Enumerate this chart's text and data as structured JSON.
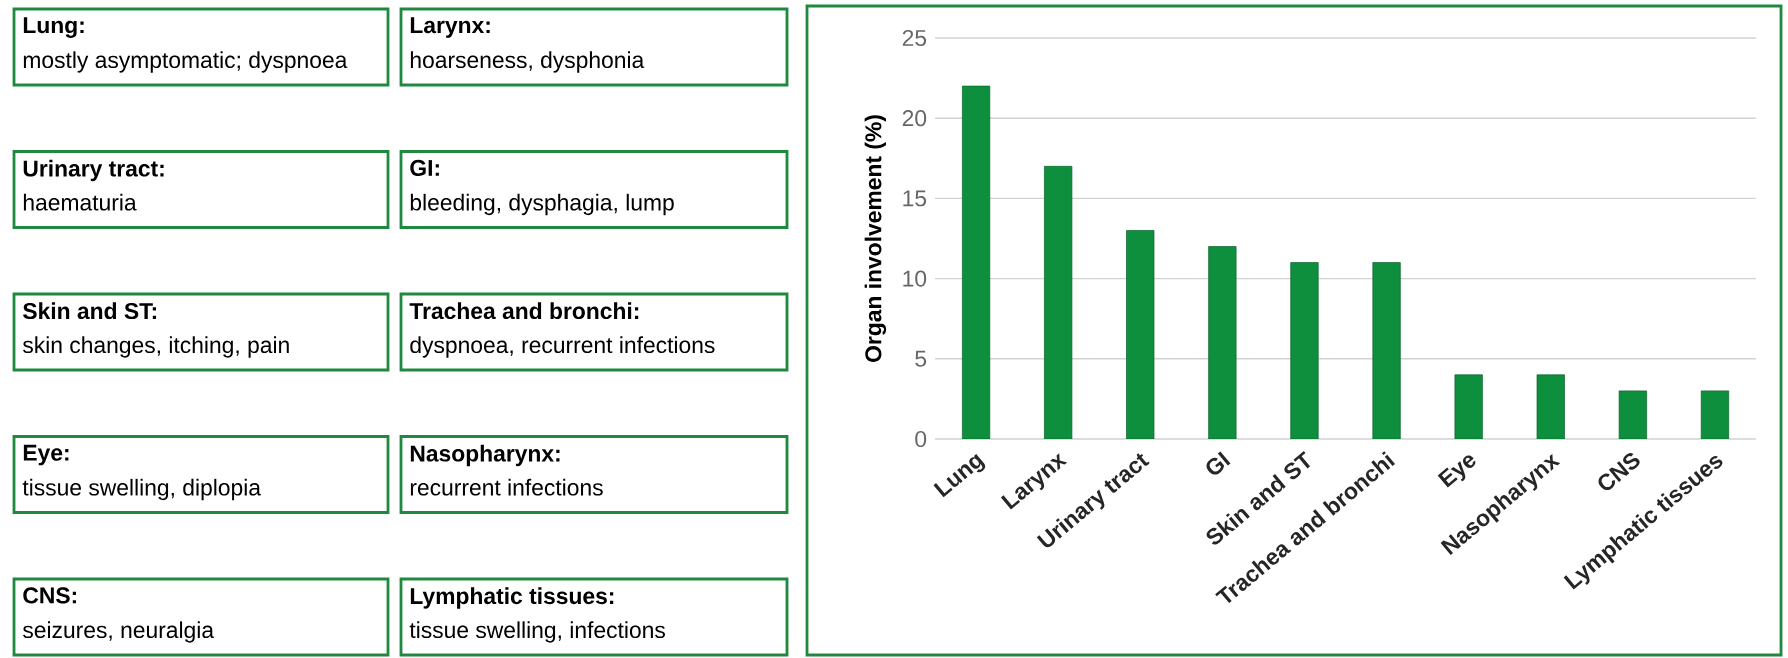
{
  "chart_data": [
    {
      "type": "other",
      "annotations": [
        "Lung:",
        "mostly asymptomatic; dyspnoea",
        "Larynx:",
        "hoarseness, dysphonia",
        "Urinary tract:",
        "haematuria",
        "GI:",
        "bleeding,  dysphagia, lump",
        "Skin and ST:",
        "skin changes, itching, pain",
        "Trachea and bronchi:",
        "dyspnoea, recurrent infections",
        "Eye:",
        "tissue swelling, diplopia",
        "Nasopharynx:",
        "recurrent infections",
        "CNS:",
        "seizures, neuralgia",
        "Lymphatic tissues:",
        "tissue swelling, infections"
      ]
    },
    {
      "type": "bar",
      "ylabel": "Organ involvement (%)",
      "categories": [
        "Lung",
        "Larynx",
        "Urinary tract",
        "GI",
        "Skin and ST",
        "Trachea and bronchi",
        "Eye",
        "Nasopharynx",
        "CNS",
        "Lymphatic tissues"
      ],
      "values": [
        22,
        17,
        13,
        12,
        11,
        11,
        4,
        4,
        3,
        3
      ],
      "color": "#0e8f3e",
      "ylim": [
        0,
        25
      ],
      "yticks": [
        0,
        5,
        10,
        15,
        20,
        25
      ],
      "grid": "y"
    }
  ]
}
